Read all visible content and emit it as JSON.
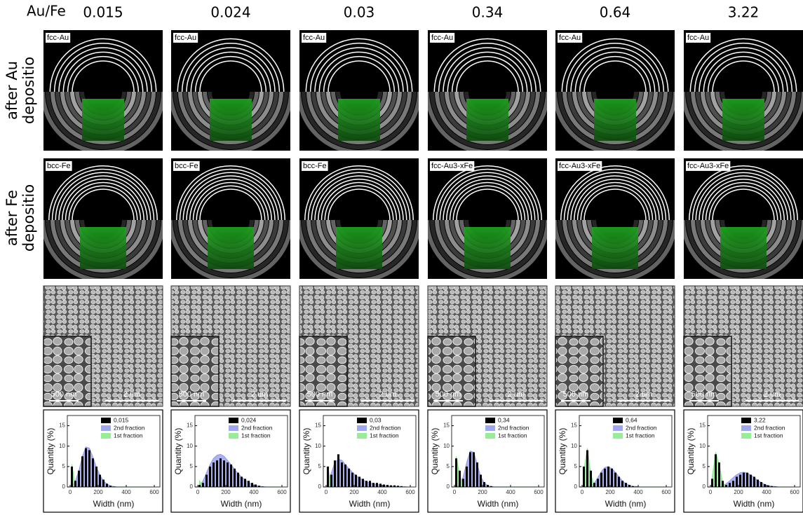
{
  "header": {
    "label": "Au/Fe",
    "ratios": [
      "0.015",
      "0.024",
      "0.03",
      "0.34",
      "0.64",
      "3.22"
    ]
  },
  "row_labels": [
    [
      "after Au",
      "depositio"
    ],
    [
      "after Fe",
      "depositio"
    ]
  ],
  "diffraction": {
    "au_labels": [
      "fcc-Au",
      "fcc-Au",
      "fcc-Au",
      "fcc-Au",
      "fcc-Au",
      "fcc-Au"
    ],
    "fe_labels": [
      "bcc-Fe",
      "bcc-Fe",
      "bcc-Fe",
      "fcc-Au3-xFe",
      "fcc-Au3-xFe",
      "fcc-Au3-xFe"
    ]
  },
  "sem": [
    {
      "inset_scale": "500 nm",
      "scale": "2 um"
    },
    {
      "inset_scale": "500 nm",
      "scale": "2 um"
    },
    {
      "inset_scale": "500 nm",
      "scale": "2 um"
    },
    {
      "inset_scale": "500 nm",
      "scale": "2 um"
    },
    {
      "inset_scale": "500 nm",
      "scale": "2 um"
    },
    {
      "inset_scale": "500 nm",
      "scale": "2 um"
    }
  ],
  "chart_data": [
    {
      "type": "histogram",
      "xlabel": "Width (nm)",
      "ylabel": "Quantity (%)",
      "xlim": [
        -20,
        640
      ],
      "ylim": [
        0,
        17.5
      ],
      "xticks": [
        0,
        200,
        400,
        600
      ],
      "yticks": [
        0,
        5,
        10,
        15
      ],
      "bins": [
        0,
        25,
        50,
        75,
        100,
        125,
        150,
        175,
        200,
        225,
        250,
        275,
        300,
        325,
        350,
        375,
        400,
        425,
        450,
        475,
        500,
        525,
        550,
        575,
        600
      ],
      "series": [
        {
          "name": "0,015",
          "color": "#000000",
          "values": [
            5,
            1.5,
            4,
            7.5,
            9.5,
            9,
            7,
            5,
            3,
            1.8,
            0.8,
            0.3,
            0.1,
            0,
            0,
            0,
            0,
            0,
            0,
            0,
            0,
            0,
            0,
            0
          ]
        },
        {
          "name": "2nd fraction",
          "color": "#8f98ea",
          "values": [
            0.3,
            1.5,
            4,
            7.5,
            9.8,
            9.5,
            7.3,
            4.8,
            2.9,
            1.5,
            0.7,
            0.3,
            0.1,
            0,
            0,
            0,
            0,
            0,
            0,
            0,
            0,
            0,
            0,
            0
          ]
        },
        {
          "name": "1st fraction",
          "color": "#84ea84",
          "values": [
            5.5,
            0,
            0,
            0,
            0,
            0,
            0,
            0,
            0,
            0,
            0,
            0,
            0,
            0,
            0,
            0,
            0,
            0,
            0,
            0,
            0,
            0,
            0,
            0
          ]
        }
      ]
    },
    {
      "type": "histogram",
      "xlabel": "Width (nm)",
      "ylabel": "Quantity (%)",
      "xlim": [
        -20,
        640
      ],
      "ylim": [
        0,
        17.5
      ],
      "xticks": [
        0,
        200,
        400,
        600
      ],
      "yticks": [
        0,
        5,
        10,
        15
      ],
      "bins": [
        0,
        25,
        50,
        75,
        100,
        125,
        150,
        175,
        200,
        225,
        250,
        275,
        300,
        325,
        350,
        375,
        400,
        425,
        450,
        475,
        500,
        525,
        550,
        575,
        600
      ],
      "series": [
        {
          "name": "0,024",
          "color": "#000000",
          "values": [
            0.5,
            1,
            3,
            5,
            6,
            6.5,
            7,
            6.5,
            6,
            5.5,
            4.5,
            3.5,
            2.5,
            2,
            1.5,
            1,
            0.6,
            0.3,
            0.1,
            0,
            0,
            0,
            0,
            0
          ]
        },
        {
          "name": "2nd fraction",
          "color": "#8f98ea",
          "values": [
            0.3,
            1.5,
            3.5,
            5.5,
            7,
            7.8,
            8,
            7.5,
            6.5,
            5.5,
            4.3,
            3.3,
            2.4,
            1.7,
            1.1,
            0.7,
            0.4,
            0.2,
            0.1,
            0,
            0,
            0,
            0,
            0
          ]
        },
        {
          "name": "1st fraction",
          "color": "#84ea84",
          "values": [
            1.5,
            0,
            0,
            0,
            0,
            0,
            0,
            0,
            0,
            0,
            0,
            0,
            0,
            0,
            0,
            0,
            0,
            0,
            0,
            0,
            0,
            0,
            0,
            0
          ]
        }
      ]
    },
    {
      "type": "histogram",
      "xlabel": "Width (nm)",
      "ylabel": "Quantity (%)",
      "xlim": [
        -20,
        640
      ],
      "ylim": [
        0,
        17.5
      ],
      "xticks": [
        0,
        200,
        400,
        600
      ],
      "yticks": [
        0,
        5,
        10,
        15
      ],
      "bins": [
        0,
        25,
        50,
        75,
        100,
        125,
        150,
        175,
        200,
        225,
        250,
        275,
        300,
        325,
        350,
        375,
        400,
        425,
        450,
        475,
        500,
        525,
        550,
        575,
        600
      ],
      "series": [
        {
          "name": "0,03",
          "color": "#000000",
          "values": [
            5,
            3,
            6.5,
            8,
            6,
            5.5,
            4.5,
            3.5,
            3,
            2.5,
            2,
            1.5,
            1.5,
            1,
            1,
            0.8,
            0.6,
            0.5,
            0.4,
            0.4,
            0.3,
            0.2,
            0.1,
            0
          ]
        },
        {
          "name": "2nd fraction",
          "color": "#8f98ea",
          "values": [
            1,
            3.5,
            6,
            6.8,
            6.5,
            5.5,
            4.5,
            3.6,
            2.8,
            2.2,
            1.7,
            1.3,
            1,
            0.8,
            0.6,
            0.5,
            0.4,
            0.3,
            0.2,
            0.2,
            0.1,
            0.1,
            0,
            0
          ]
        },
        {
          "name": "1st fraction",
          "color": "#84ea84",
          "values": [
            5,
            0,
            0,
            0,
            0,
            0,
            0,
            0,
            0,
            0,
            0,
            0,
            0,
            0,
            0,
            0,
            0,
            0,
            0,
            0,
            0,
            0,
            0,
            0
          ]
        }
      ]
    },
    {
      "type": "histogram",
      "xlabel": "Width (nm)",
      "ylabel": "Quantity (%)",
      "xlim": [
        -20,
        640
      ],
      "ylim": [
        0,
        17.5
      ],
      "xticks": [
        0,
        200,
        400,
        600
      ],
      "yticks": [
        0,
        5,
        10,
        15
      ],
      "bins": [
        0,
        25,
        50,
        75,
        100,
        125,
        150,
        175,
        200,
        225,
        250,
        275,
        300,
        325,
        350,
        375,
        400,
        425,
        450,
        475,
        500,
        525,
        550,
        575,
        600
      ],
      "series": [
        {
          "name": "0,34",
          "color": "#000000",
          "values": [
            7,
            4,
            2,
            5,
            8.5,
            8.5,
            6,
            3,
            1.2,
            0.5,
            0.2,
            0,
            0,
            0,
            0,
            0,
            0,
            0,
            0,
            0,
            0,
            0,
            0,
            0
          ]
        },
        {
          "name": "2nd fraction",
          "color": "#8f98ea",
          "values": [
            0,
            0.5,
            2.5,
            6,
            8.8,
            8.5,
            5.5,
            2.5,
            1,
            0.3,
            0.1,
            0,
            0,
            0,
            0,
            0,
            0,
            0,
            0,
            0,
            0,
            0,
            0,
            0
          ]
        },
        {
          "name": "1st fraction",
          "color": "#84ea84",
          "values": [
            7.5,
            3,
            0.3,
            0,
            0,
            0,
            0,
            0,
            0,
            0,
            0,
            0,
            0,
            0,
            0,
            0,
            0,
            0,
            0,
            0,
            0,
            0,
            0,
            0
          ]
        }
      ]
    },
    {
      "type": "histogram",
      "xlabel": "Width (nm)",
      "ylabel": "Quantity (%)",
      "xlim": [
        -20,
        640
      ],
      "ylim": [
        0,
        17.5
      ],
      "xticks": [
        0,
        200,
        400,
        600
      ],
      "yticks": [
        0,
        5,
        10,
        15
      ],
      "bins": [
        0,
        25,
        50,
        75,
        100,
        125,
        150,
        175,
        200,
        225,
        250,
        275,
        300,
        325,
        350,
        375,
        400,
        425,
        450,
        475,
        500,
        525,
        550,
        575,
        600
      ],
      "series": [
        {
          "name": "0,64",
          "color": "#000000",
          "values": [
            5,
            9,
            4,
            1,
            2,
            3.5,
            4.5,
            5,
            4.5,
            3.5,
            2.5,
            1.5,
            1,
            0.5,
            0.2,
            0.1,
            0,
            0,
            0,
            0,
            0,
            0,
            0,
            0
          ]
        },
        {
          "name": "2nd fraction",
          "color": "#8f98ea",
          "values": [
            0,
            0,
            0.3,
            1,
            2.3,
            3.8,
            4.8,
            5,
            4.5,
            3.6,
            2.5,
            1.5,
            0.8,
            0.4,
            0.2,
            0.1,
            0,
            0,
            0,
            0,
            0,
            0,
            0,
            0
          ]
        },
        {
          "name": "1st fraction",
          "color": "#84ea84",
          "values": [
            4,
            9.5,
            3,
            0.3,
            0,
            0,
            0,
            0,
            0,
            0,
            0,
            0,
            0,
            0,
            0,
            0,
            0,
            0,
            0,
            0,
            0,
            0,
            0,
            0
          ]
        }
      ]
    },
    {
      "type": "histogram",
      "xlabel": "Width (nm)",
      "ylabel": "Quantity (%)",
      "xlim": [
        -20,
        640
      ],
      "ylim": [
        0,
        17.5
      ],
      "xticks": [
        0,
        200,
        400,
        600
      ],
      "yticks": [
        0,
        5,
        10,
        15
      ],
      "bins": [
        0,
        25,
        50,
        75,
        100,
        125,
        150,
        175,
        200,
        225,
        250,
        275,
        300,
        325,
        350,
        375,
        400,
        425,
        450,
        475,
        500,
        525,
        550,
        575,
        600
      ],
      "series": [
        {
          "name": "3,22",
          "color": "#000000",
          "values": [
            2,
            8,
            6,
            1.5,
            0.5,
            1,
            1.5,
            2.5,
            3,
            3.5,
            3.5,
            3,
            2.5,
            1.8,
            1.2,
            0.7,
            0.4,
            0.2,
            0.1,
            0,
            0,
            0,
            0,
            0
          ]
        },
        {
          "name": "2nd fraction",
          "color": "#8f98ea",
          "values": [
            0,
            0,
            0,
            0.3,
            0.8,
            1.5,
            2.3,
            3,
            3.5,
            3.6,
            3.4,
            2.9,
            2.3,
            1.6,
            1.1,
            0.6,
            0.3,
            0.2,
            0.1,
            0,
            0,
            0,
            0,
            0
          ]
        },
        {
          "name": "1st fraction",
          "color": "#84ea84",
          "values": [
            2.5,
            8.5,
            5.5,
            1,
            0,
            0,
            0,
            0,
            0,
            0,
            0,
            0,
            0,
            0,
            0,
            0,
            0,
            0,
            0,
            0,
            0,
            0,
            0,
            0
          ]
        }
      ]
    }
  ]
}
